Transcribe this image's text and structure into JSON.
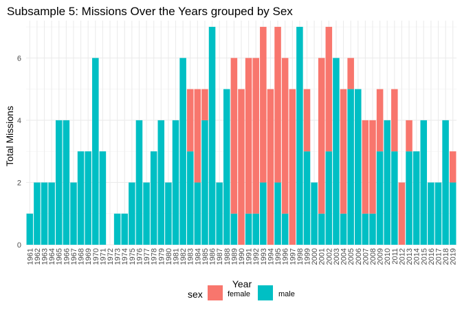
{
  "chart_data": {
    "type": "bar",
    "stacked": true,
    "title": "Subsample 5: Missions Over the Years grouped by Sex",
    "xlabel": "Year",
    "ylabel": "Total Missions",
    "ylim": [
      0,
      7.2
    ],
    "yticks": [
      0,
      2,
      4,
      6
    ],
    "grid": true,
    "legend": {
      "title": "sex",
      "position": "bottom"
    },
    "categories": [
      "1961",
      "1962",
      "1963",
      "1964",
      "1965",
      "1966",
      "1967",
      "1968",
      "1969",
      "1970",
      "1971",
      "1972",
      "1973",
      "1974",
      "1975",
      "1976",
      "1977",
      "1978",
      "1979",
      "1980",
      "1981",
      "1982",
      "1983",
      "1984",
      "1985",
      "1986",
      "1987",
      "1988",
      "1989",
      "1990",
      "1991",
      "1992",
      "1993",
      "1994",
      "1995",
      "1996",
      "1997",
      "1998",
      "1999",
      "2000",
      "2001",
      "2002",
      "2003",
      "2004",
      "2005",
      "2006",
      "2007",
      "2008",
      "2009",
      "2010",
      "2011",
      "2012",
      "2013",
      "2014",
      "2015",
      "2016",
      "2017",
      "2018",
      "2019"
    ],
    "xtick_labels": [
      "1961",
      "1962",
      "1963",
      "1964",
      "1965",
      "1966",
      "1967",
      "1968",
      "1969",
      "1970",
      "1971",
      "1972",
      "1973",
      "1974",
      "1975",
      "1976",
      "1977",
      "1978",
      "1979",
      "1980",
      "1981",
      "1982",
      "1983",
      "1984",
      "1985",
      "1986",
      "1987",
      "1988",
      "1989",
      "1990",
      "1991",
      "1992",
      "1993",
      "1994",
      "1995",
      "1996",
      "1997",
      "1998",
      "1999",
      "2000",
      "2001",
      "2002",
      "2003",
      "2004",
      "2005",
      "2006",
      "2007",
      "2008",
      "2009",
      "2010",
      "2011",
      "2012",
      "2013",
      "2014",
      "2015",
      "2016",
      "2017",
      "2018",
      "2019"
    ],
    "series": [
      {
        "name": "female",
        "color": "#F8766D",
        "values": [
          0,
          0,
          0,
          0,
          0,
          0,
          0,
          0,
          0,
          0,
          0,
          0,
          0,
          0,
          0,
          0,
          0,
          0,
          0,
          0,
          0,
          0,
          2,
          3,
          1,
          0,
          0,
          0,
          5,
          5,
          5,
          5,
          5,
          5,
          5,
          5,
          5,
          0,
          2,
          0,
          5,
          4,
          0,
          4,
          1,
          0,
          3,
          3,
          2,
          0,
          2,
          2,
          1,
          0,
          0,
          0,
          0,
          0,
          1
        ]
      },
      {
        "name": "male",
        "color": "#00BFC4",
        "values": [
          1,
          2,
          2,
          2,
          4,
          4,
          2,
          3,
          3,
          6,
          3,
          0,
          1,
          1,
          2,
          4,
          2,
          3,
          4,
          2,
          4,
          6,
          3,
          2,
          4,
          7,
          2,
          5,
          1,
          0,
          1,
          1,
          2,
          0,
          2,
          1,
          0,
          7,
          3,
          2,
          1,
          3,
          6,
          1,
          5,
          5,
          1,
          1,
          3,
          4,
          3,
          0,
          3,
          3,
          4,
          2,
          2,
          4,
          2
        ]
      }
    ]
  }
}
